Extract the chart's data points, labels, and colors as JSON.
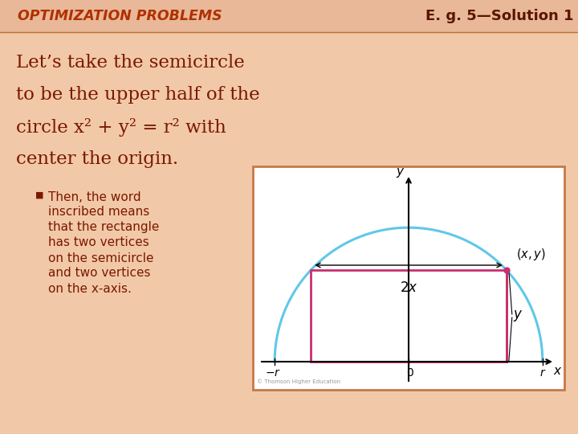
{
  "bg_color": "#f2c9a8",
  "title_bar_color": "#e8b898",
  "title_text": "OPTIMIZATION PROBLEMS",
  "title_color": "#b03000",
  "subtitle_text": "E. g. 5—Solution 1",
  "subtitle_color": "#5a1500",
  "body_lines": [
    "Let’s take the semicircle",
    "to be the upper half of the",
    "circle x² + y² = r² with",
    "center the origin."
  ],
  "body_color": "#7a1800",
  "bullet_lines": [
    "Then, the word",
    "inscribed means",
    "that the rectangle",
    "has two vertices",
    "on the semicircle",
    "and two vertices",
    "on the x-axis."
  ],
  "bullet_color": "#7a1800",
  "graph_bg": "#ffffff",
  "graph_border_color": "#c87848",
  "semicircle_color": "#60c8e8",
  "rectangle_color": "#c83070",
  "dot_color": "#c83070"
}
